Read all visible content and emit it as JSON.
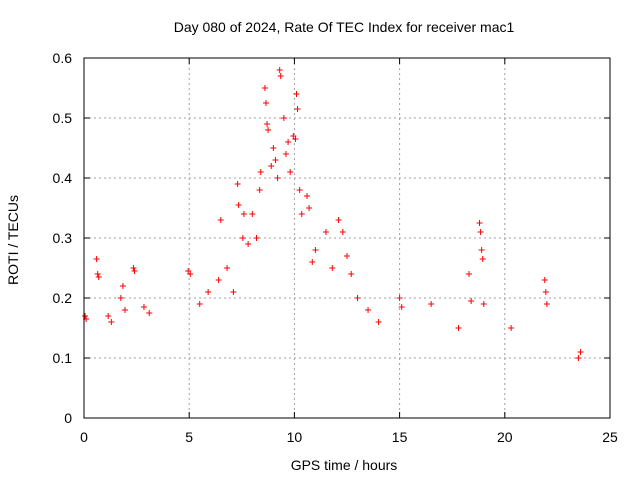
{
  "chart_data": {
    "type": "scatter",
    "title": "Day 080 of 2024, Rate Of TEC Index for receiver mac1",
    "xlabel": "GPS time / hours",
    "ylabel": "ROTI / TECUs",
    "xlim": [
      0,
      25
    ],
    "ylim": [
      0,
      0.6
    ],
    "xticks": [
      0,
      5,
      10,
      15,
      20,
      25
    ],
    "yticks": [
      0,
      0.1,
      0.2,
      0.3,
      0.4,
      0.5,
      0.6
    ],
    "xtick_labels": [
      "0",
      "5",
      "10",
      "15",
      "20",
      "25"
    ],
    "ytick_labels": [
      "0",
      "0.1",
      "0.2",
      "0.3",
      "0.4",
      "0.5",
      "0.6"
    ],
    "grid": true,
    "marker": "+",
    "point_color": "#ff0000",
    "series": [
      {
        "points": [
          [
            0.05,
            0.17
          ],
          [
            0.1,
            0.165
          ],
          [
            0.6,
            0.265
          ],
          [
            0.65,
            0.24
          ],
          [
            0.7,
            0.235
          ],
          [
            1.15,
            0.17
          ],
          [
            1.3,
            0.16
          ],
          [
            1.75,
            0.2
          ],
          [
            1.85,
            0.22
          ],
          [
            1.95,
            0.18
          ],
          [
            2.35,
            0.25
          ],
          [
            2.4,
            0.245
          ],
          [
            2.85,
            0.185
          ],
          [
            3.1,
            0.175
          ],
          [
            4.95,
            0.245
          ],
          [
            5.05,
            0.24
          ],
          [
            5.5,
            0.19
          ],
          [
            5.9,
            0.21
          ],
          [
            6.4,
            0.23
          ],
          [
            6.5,
            0.33
          ],
          [
            6.8,
            0.25
          ],
          [
            7.1,
            0.21
          ],
          [
            7.3,
            0.39
          ],
          [
            7.35,
            0.355
          ],
          [
            7.55,
            0.3
          ],
          [
            7.6,
            0.34
          ],
          [
            7.8,
            0.29
          ],
          [
            8.0,
            0.34
          ],
          [
            8.2,
            0.3
          ],
          [
            8.35,
            0.38
          ],
          [
            8.4,
            0.41
          ],
          [
            8.6,
            0.55
          ],
          [
            8.65,
            0.525
          ],
          [
            8.7,
            0.49
          ],
          [
            8.75,
            0.48
          ],
          [
            8.9,
            0.42
          ],
          [
            9.0,
            0.45
          ],
          [
            9.1,
            0.43
          ],
          [
            9.2,
            0.4
          ],
          [
            9.3,
            0.58
          ],
          [
            9.35,
            0.57
          ],
          [
            9.5,
            0.5
          ],
          [
            9.6,
            0.44
          ],
          [
            9.7,
            0.46
          ],
          [
            9.8,
            0.41
          ],
          [
            9.95,
            0.47
          ],
          [
            10.05,
            0.465
          ],
          [
            10.1,
            0.54
          ],
          [
            10.15,
            0.515
          ],
          [
            10.25,
            0.38
          ],
          [
            10.35,
            0.34
          ],
          [
            10.6,
            0.37
          ],
          [
            10.7,
            0.35
          ],
          [
            10.85,
            0.26
          ],
          [
            11.0,
            0.28
          ],
          [
            11.5,
            0.31
          ],
          [
            11.8,
            0.25
          ],
          [
            12.1,
            0.33
          ],
          [
            12.3,
            0.31
          ],
          [
            12.5,
            0.27
          ],
          [
            12.7,
            0.24
          ],
          [
            13.0,
            0.2
          ],
          [
            13.5,
            0.18
          ],
          [
            14.0,
            0.16
          ],
          [
            15.0,
            0.2
          ],
          [
            15.1,
            0.185
          ],
          [
            16.5,
            0.19
          ],
          [
            17.8,
            0.15
          ],
          [
            18.3,
            0.24
          ],
          [
            18.4,
            0.195
          ],
          [
            18.8,
            0.325
          ],
          [
            18.85,
            0.31
          ],
          [
            18.9,
            0.28
          ],
          [
            18.95,
            0.265
          ],
          [
            19.0,
            0.19
          ],
          [
            20.3,
            0.15
          ],
          [
            21.9,
            0.23
          ],
          [
            21.95,
            0.21
          ],
          [
            22.0,
            0.19
          ],
          [
            23.5,
            0.1
          ],
          [
            23.6,
            0.11
          ]
        ]
      }
    ]
  }
}
